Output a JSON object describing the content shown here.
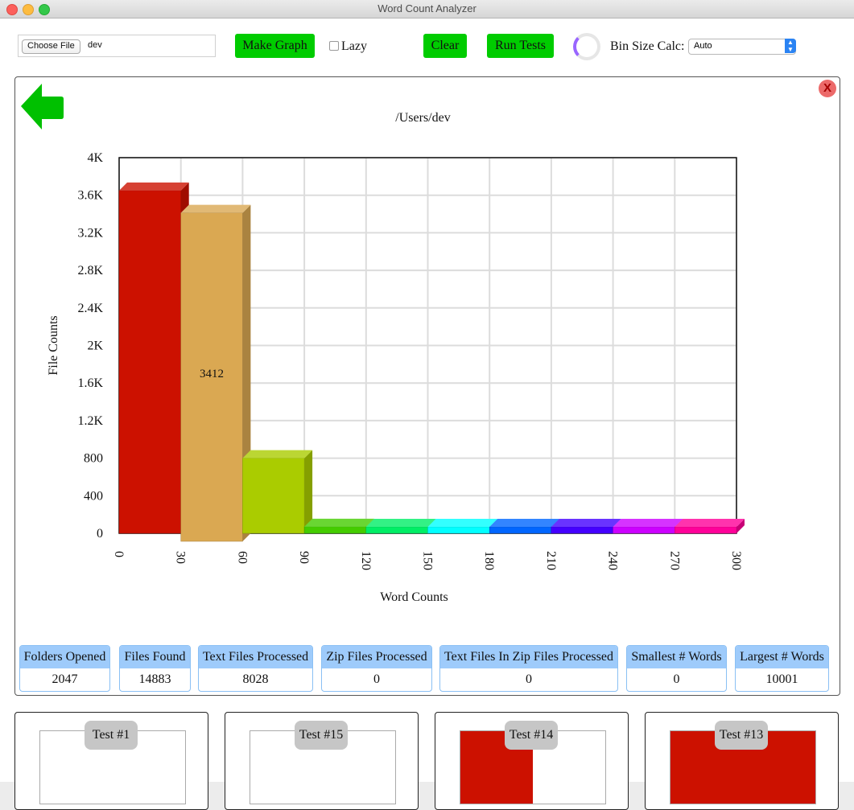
{
  "window": {
    "title": "Word Count Analyzer"
  },
  "toolbar": {
    "choose_file_label": "Choose File",
    "file_name": "dev",
    "make_graph_label": "Make Graph",
    "lazy_label": "Lazy",
    "clear_label": "Clear",
    "run_tests_label": "Run Tests",
    "bin_size_label": "Bin Size Calc:",
    "bin_size_value": "Auto"
  },
  "panel": {
    "close_label": "X"
  },
  "chart_data": {
    "type": "bar",
    "title": "/Users/dev",
    "xlabel": "Word Counts",
    "ylabel": "File Counts",
    "x_ticks": [
      "0",
      "30",
      "60",
      "90",
      "120",
      "150",
      "180",
      "210",
      "240",
      "270",
      "300"
    ],
    "y_ticks": [
      "0",
      "400",
      "800",
      "1.2K",
      "1.6K",
      "2K",
      "2.4K",
      "2.8K",
      "3.2K",
      "3.6K",
      "4K"
    ],
    "xlim": [
      0,
      300
    ],
    "ylim": [
      0,
      4000
    ],
    "bins": [
      {
        "start": 0,
        "end": 30,
        "value": 3650,
        "color": "#cc1100"
      },
      {
        "start": 30,
        "end": 60,
        "value": 3412,
        "color": "#daa852",
        "label": "3412"
      },
      {
        "start": 60,
        "end": 90,
        "value": 800,
        "color": "#aacc00"
      },
      {
        "start": 90,
        "end": 120,
        "value": 70,
        "color": "#44cc00"
      },
      {
        "start": 120,
        "end": 150,
        "value": 0,
        "color": "#00ee66"
      },
      {
        "start": 150,
        "end": 180,
        "value": 0,
        "color": "#00ffff"
      },
      {
        "start": 180,
        "end": 210,
        "value": 0,
        "color": "#0066ff"
      },
      {
        "start": 210,
        "end": 240,
        "value": 0,
        "color": "#4400ff"
      },
      {
        "start": 240,
        "end": 270,
        "value": 0,
        "color": "#cc00ff"
      },
      {
        "start": 270,
        "end": 300,
        "value": 0,
        "color": "#ff0099"
      }
    ],
    "grid": true
  },
  "stats": [
    {
      "label": "Folders Opened",
      "value": "2047"
    },
    {
      "label": "Files Found",
      "value": "14883"
    },
    {
      "label": "Text Files Processed",
      "value": "8028"
    },
    {
      "label": "Zip Files Processed",
      "value": "0"
    },
    {
      "label": "Text Files In Zip Files Processed",
      "value": "0"
    },
    {
      "label": "Smallest # Words",
      "value": "0"
    },
    {
      "label": "Largest # Words",
      "value": "10001"
    }
  ],
  "tests": [
    {
      "label": "Test #1"
    },
    {
      "label": "Test #15"
    },
    {
      "label": "Test #14"
    },
    {
      "label": "Test #13"
    }
  ]
}
